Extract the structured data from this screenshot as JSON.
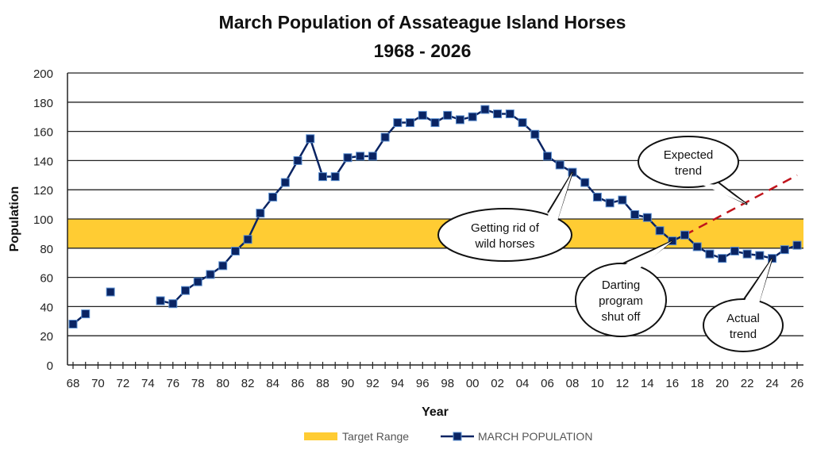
{
  "chart_data": {
    "type": "line",
    "title": "March Population of Assateague Island Horses",
    "subtitle": "1968 - 2026",
    "xlabel": "Year",
    "ylabel": "Population",
    "ylim": [
      0,
      200
    ],
    "yticks": [
      0,
      20,
      40,
      60,
      80,
      100,
      120,
      140,
      160,
      180,
      200
    ],
    "xlim": [
      1968,
      2026
    ],
    "xtick_labels": [
      "68",
      "70",
      "72",
      "74",
      "76",
      "78",
      "80",
      "82",
      "84",
      "86",
      "88",
      "90",
      "92",
      "94",
      "96",
      "98",
      "00",
      "02",
      "04",
      "06",
      "08",
      "10",
      "12",
      "14",
      "16",
      "18",
      "20",
      "22",
      "24",
      "26"
    ],
    "grid": true,
    "target_range": {
      "name": "Target Range",
      "low": 80,
      "high": 100,
      "color": "#FFCC33"
    },
    "series": [
      {
        "name": "MARCH POPULATION",
        "color": "#0A2463",
        "points": [
          [
            1968,
            28
          ],
          [
            1969,
            35
          ],
          [
            1970,
            null
          ],
          [
            1971,
            50
          ],
          [
            1972,
            null
          ],
          [
            1973,
            null
          ],
          [
            1974,
            null
          ],
          [
            1975,
            44
          ],
          [
            1976,
            42
          ],
          [
            1977,
            51
          ],
          [
            1978,
            57
          ],
          [
            1979,
            62
          ],
          [
            1980,
            68
          ],
          [
            1981,
            78
          ],
          [
            1982,
            86
          ],
          [
            1983,
            104
          ],
          [
            1984,
            115
          ],
          [
            1985,
            125
          ],
          [
            1986,
            140
          ],
          [
            1987,
            155
          ],
          [
            1988,
            129
          ],
          [
            1989,
            129
          ],
          [
            1990,
            142
          ],
          [
            1991,
            143
          ],
          [
            1992,
            143
          ],
          [
            1993,
            156
          ],
          [
            1994,
            166
          ],
          [
            1995,
            166
          ],
          [
            1996,
            171
          ],
          [
            1997,
            166
          ],
          [
            1998,
            171
          ],
          [
            1999,
            168
          ],
          [
            2000,
            170
          ],
          [
            2001,
            175
          ],
          [
            2002,
            172
          ],
          [
            2003,
            172
          ],
          [
            2004,
            166
          ],
          [
            2005,
            158
          ],
          [
            2006,
            143
          ],
          [
            2007,
            137
          ],
          [
            2008,
            132
          ],
          [
            2009,
            125
          ],
          [
            2010,
            115
          ],
          [
            2011,
            111
          ],
          [
            2012,
            113
          ],
          [
            2013,
            103
          ],
          [
            2014,
            101
          ],
          [
            2015,
            92
          ],
          [
            2016,
            85
          ],
          [
            2017,
            89
          ],
          [
            2018,
            81
          ],
          [
            2019,
            76
          ],
          [
            2020,
            73
          ],
          [
            2021,
            78
          ],
          [
            2022,
            76
          ],
          [
            2023,
            75
          ],
          [
            2024,
            73
          ],
          [
            2025,
            79
          ],
          [
            2026,
            82
          ]
        ]
      },
      {
        "name": "Expected trend line",
        "color": "#C0141C",
        "dashed": true,
        "points": [
          [
            2017,
            89
          ],
          [
            2026,
            130
          ]
        ]
      }
    ],
    "legend": {
      "placement": "bottom",
      "entries": [
        "Target Range",
        "MARCH POPULATION"
      ]
    },
    "annotations": [
      {
        "text": [
          "Getting rid of",
          "wild horses"
        ],
        "target": [
          2008,
          132
        ]
      },
      {
        "text": [
          "Expected",
          "trend"
        ],
        "target": [
          2022,
          110
        ]
      },
      {
        "text": [
          "Darting",
          "program",
          "shut off"
        ],
        "target": [
          2016,
          85
        ]
      },
      {
        "text": [
          "Actual",
          "trend"
        ],
        "target": [
          2024,
          73
        ]
      }
    ]
  }
}
